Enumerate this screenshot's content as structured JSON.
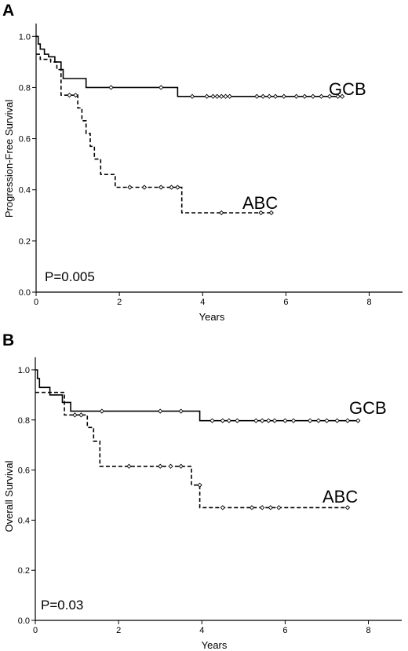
{
  "chart_data": [
    {
      "panel": "A",
      "type": "line",
      "xlabel": "Years",
      "ylabel": "Progression-Free Survival",
      "xlim": [
        0,
        8.8
      ],
      "ylim": [
        0,
        1.05
      ],
      "x_ticks": [
        "0",
        "2",
        "4",
        "6",
        "8"
      ],
      "y_ticks": [
        "0.0",
        "0.2",
        "0.4",
        "0.6",
        "0.8",
        "1.0"
      ],
      "annotation": "P=0.005",
      "series": [
        {
          "name": "GCB",
          "style": "solid",
          "steps": [
            [
              0,
              1.0
            ],
            [
              0.05,
              0.97
            ],
            [
              0.1,
              0.95
            ],
            [
              0.2,
              0.93
            ],
            [
              0.3,
              0.92
            ],
            [
              0.45,
              0.9
            ],
            [
              0.6,
              0.87
            ],
            [
              0.65,
              0.835
            ],
            [
              1.2,
              0.8
            ],
            [
              3.4,
              0.765
            ],
            [
              7.4,
              0.765
            ]
          ],
          "censored": [
            [
              1.8,
              0.8
            ],
            [
              3.0,
              0.8
            ],
            [
              3.75,
              0.765
            ],
            [
              4.1,
              0.765
            ],
            [
              4.25,
              0.765
            ],
            [
              4.35,
              0.765
            ],
            [
              4.45,
              0.765
            ],
            [
              4.55,
              0.765
            ],
            [
              4.65,
              0.765
            ],
            [
              5.3,
              0.765
            ],
            [
              5.45,
              0.765
            ],
            [
              5.6,
              0.765
            ],
            [
              5.75,
              0.765
            ],
            [
              5.95,
              0.765
            ],
            [
              6.25,
              0.765
            ],
            [
              6.45,
              0.765
            ],
            [
              6.65,
              0.765
            ],
            [
              6.85,
              0.765
            ],
            [
              7.05,
              0.765
            ],
            [
              7.25,
              0.765
            ],
            [
              7.35,
              0.765
            ]
          ]
        },
        {
          "name": "ABC",
          "style": "dashed",
          "steps": [
            [
              0,
              0.93
            ],
            [
              0.1,
              0.91
            ],
            [
              0.35,
              0.9
            ],
            [
              0.5,
              0.87
            ],
            [
              0.6,
              0.77
            ],
            [
              1.0,
              0.72
            ],
            [
              1.1,
              0.67
            ],
            [
              1.2,
              0.62
            ],
            [
              1.3,
              0.57
            ],
            [
              1.4,
              0.52
            ],
            [
              1.55,
              0.46
            ],
            [
              1.9,
              0.41
            ],
            [
              3.5,
              0.31
            ],
            [
              5.65,
              0.31
            ]
          ],
          "censored": [
            [
              0.8,
              0.77
            ],
            [
              0.95,
              0.77
            ],
            [
              2.25,
              0.41
            ],
            [
              2.6,
              0.41
            ],
            [
              3.0,
              0.41
            ],
            [
              3.25,
              0.41
            ],
            [
              3.4,
              0.41
            ],
            [
              4.45,
              0.31
            ],
            [
              5.4,
              0.31
            ],
            [
              5.65,
              0.31
            ]
          ]
        }
      ]
    },
    {
      "panel": "B",
      "type": "line",
      "xlabel": "Years",
      "ylabel": "Overall Survival",
      "xlim": [
        0,
        8.8
      ],
      "ylim": [
        0,
        1.05
      ],
      "x_ticks": [
        "0",
        "2",
        "4",
        "6",
        "8"
      ],
      "y_ticks": [
        "0.0",
        "0.2",
        "0.4",
        "0.6",
        "0.8",
        "1.0"
      ],
      "annotation": "P=0.03",
      "series": [
        {
          "name": "GCB",
          "style": "solid",
          "steps": [
            [
              0,
              1.0
            ],
            [
              0.05,
              0.965
            ],
            [
              0.1,
              0.93
            ],
            [
              0.35,
              0.9
            ],
            [
              0.65,
              0.87
            ],
            [
              0.85,
              0.835
            ],
            [
              3.95,
              0.797
            ],
            [
              7.8,
              0.797
            ]
          ],
          "censored": [
            [
              1.6,
              0.835
            ],
            [
              3.0,
              0.835
            ],
            [
              3.5,
              0.835
            ],
            [
              4.25,
              0.797
            ],
            [
              4.5,
              0.797
            ],
            [
              4.65,
              0.797
            ],
            [
              4.85,
              0.797
            ],
            [
              5.3,
              0.797
            ],
            [
              5.45,
              0.797
            ],
            [
              5.6,
              0.797
            ],
            [
              5.75,
              0.797
            ],
            [
              6.0,
              0.797
            ],
            [
              6.2,
              0.797
            ],
            [
              6.6,
              0.797
            ],
            [
              6.8,
              0.797
            ],
            [
              7.0,
              0.797
            ],
            [
              7.25,
              0.797
            ],
            [
              7.5,
              0.797
            ],
            [
              7.75,
              0.797
            ]
          ]
        },
        {
          "name": "ABC",
          "style": "dashed",
          "steps": [
            [
              0,
              0.91
            ],
            [
              0.7,
              0.82
            ],
            [
              1.25,
              0.77
            ],
            [
              1.4,
              0.715
            ],
            [
              1.55,
              0.615
            ],
            [
              3.75,
              0.54
            ],
            [
              3.95,
              0.45
            ],
            [
              7.5,
              0.45
            ]
          ],
          "censored": [
            [
              0.95,
              0.82
            ],
            [
              1.1,
              0.82
            ],
            [
              2.25,
              0.615
            ],
            [
              3.0,
              0.615
            ],
            [
              3.25,
              0.615
            ],
            [
              3.5,
              0.615
            ],
            [
              3.95,
              0.54
            ],
            [
              4.5,
              0.45
            ],
            [
              5.2,
              0.45
            ],
            [
              5.45,
              0.45
            ],
            [
              5.65,
              0.45
            ],
            [
              5.85,
              0.45
            ],
            [
              7.5,
              0.45
            ]
          ]
        }
      ]
    }
  ]
}
